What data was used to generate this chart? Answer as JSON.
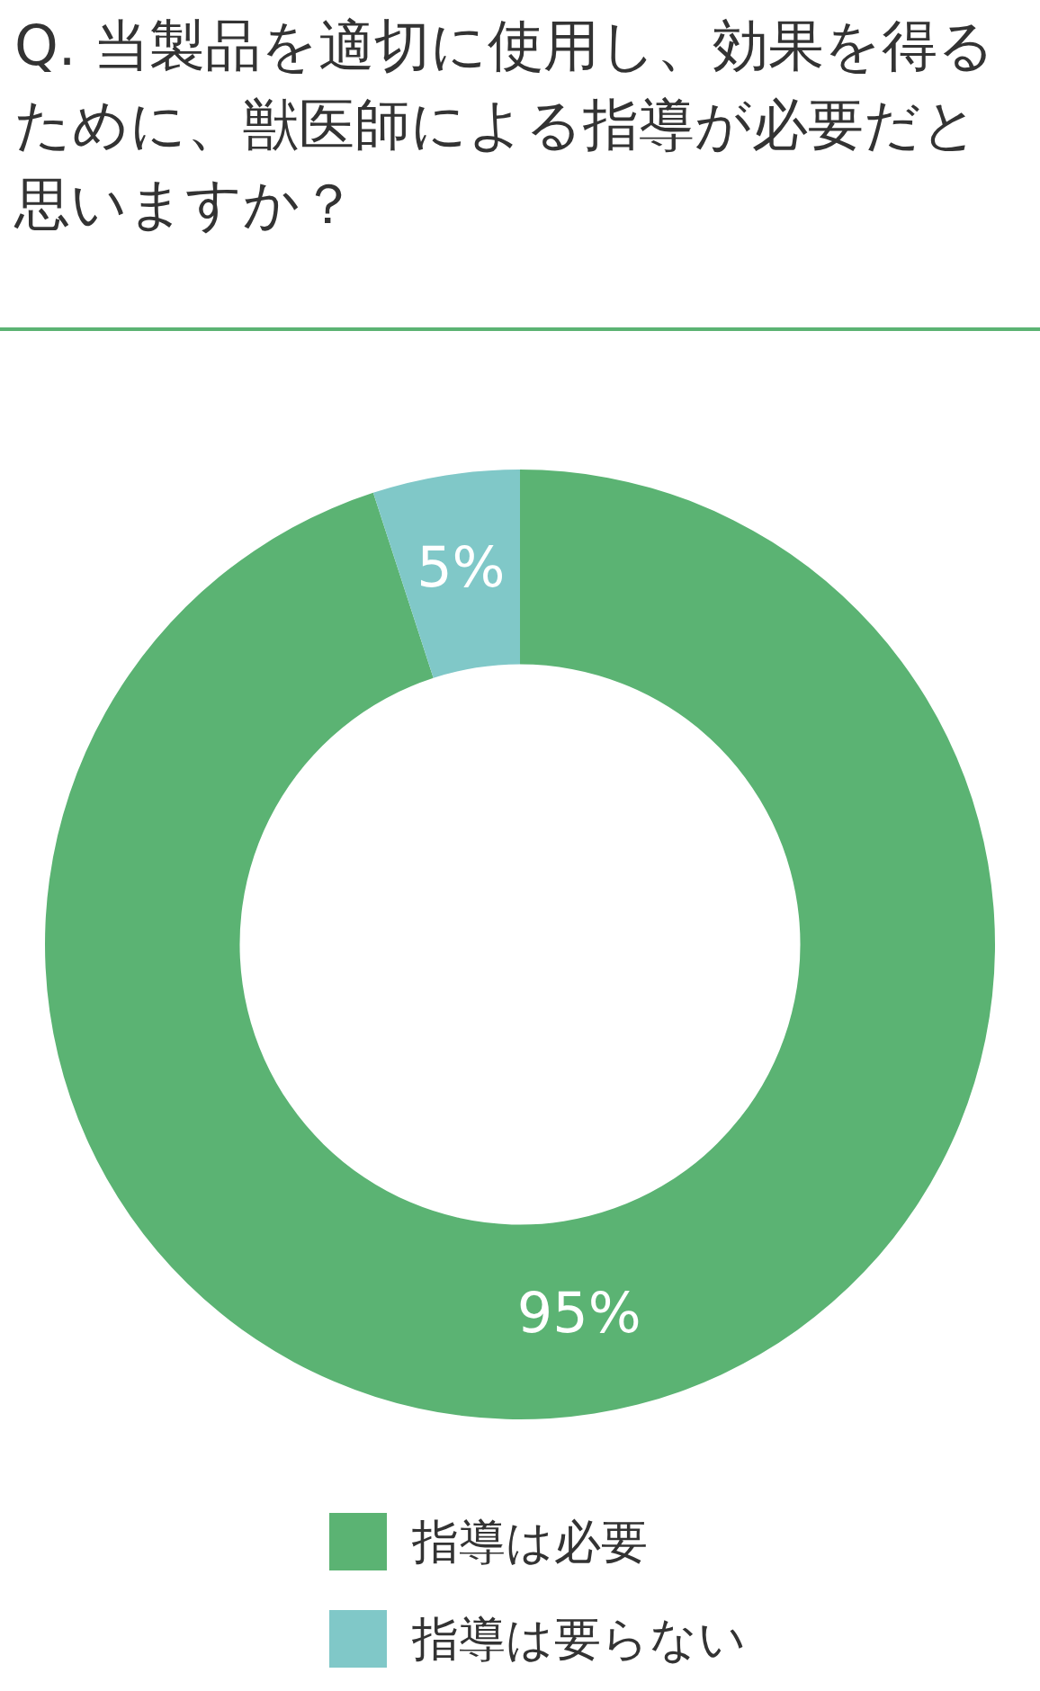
{
  "chart_data": {
    "type": "donut",
    "title": "Q. 当製品を適切に使用し、効果を得るために、獣医師による指導が必要だと思いますか？",
    "categories": [
      "指導は必要",
      "指導は要らない"
    ],
    "values": [
      95,
      5
    ],
    "colors": [
      "#5bb373",
      "#80c8c8"
    ],
    "value_labels": [
      "95%",
      "5%"
    ],
    "legend": "bottom"
  }
}
